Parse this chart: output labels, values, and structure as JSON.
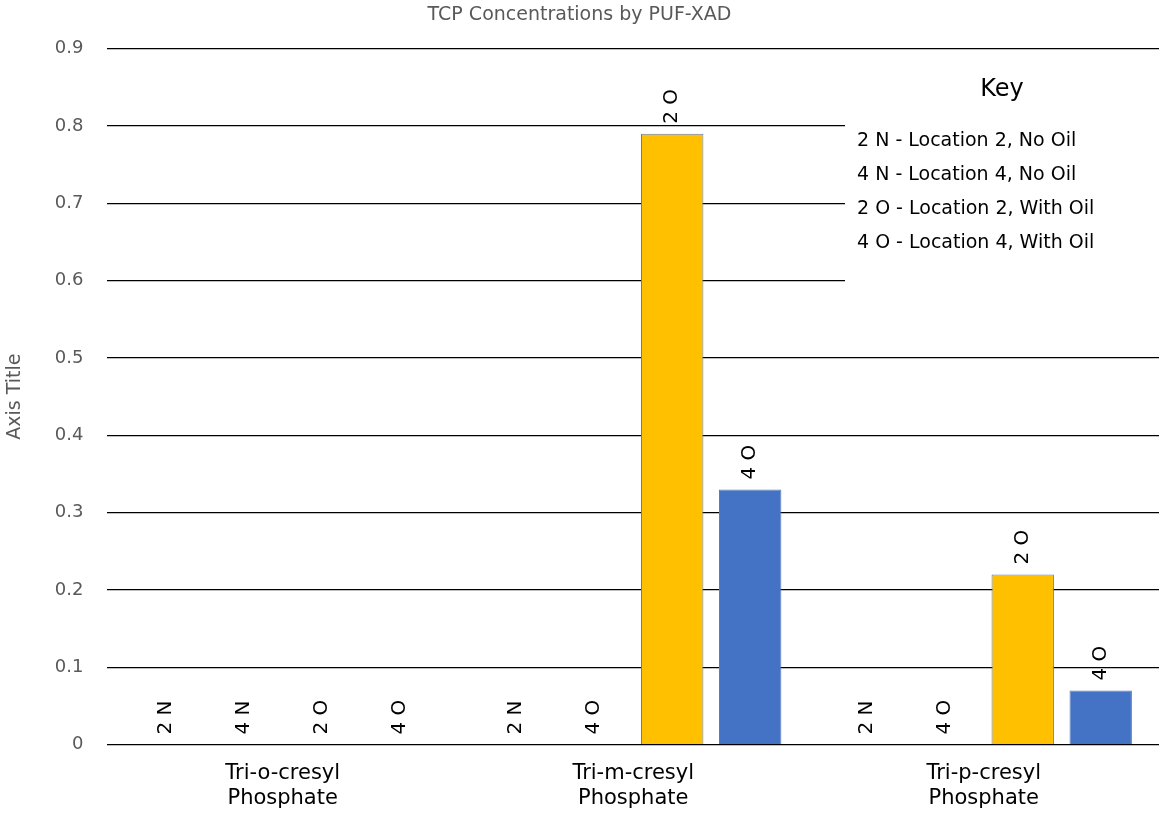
{
  "chart_data": {
    "type": "bar",
    "title": "TCP Concentrations by PUF-XAD",
    "ylabel": "Axis Title",
    "categories": [
      "Tri-o-cresyl Phosphate",
      "Tri-m-cresyl Phosphate",
      "Tri-p-cresyl Phosphate"
    ],
    "series": [
      {
        "name": "2 N",
        "values": [
          0,
          0,
          0
        ]
      },
      {
        "values": [
          0,
          0,
          0
        ]
      },
      {
        "name": "2 O",
        "color": "#ffc000",
        "values": [
          0,
          0.79,
          0.22
        ]
      },
      {
        "name": "4 O",
        "color": "#4472c4",
        "values": [
          0,
          0.33,
          0.07
        ]
      }
    ],
    "annotations": [
      "Key",
      "2 N - Location 2, No Oil",
      "4 N - Location 4, No Oil",
      "2 O - Location 2, With Oil",
      "4 O - Location 4, With Oil",
      {
        "text": "4 N",
        "x": "Tri-o-cresyl Phosphate",
        "y": 0
      },
      {
        "text": "4 O",
        "x": "Tri-m-cresyl Phosphate",
        "y": 0
      },
      {
        "text": "4 O",
        "x": "Tri-p-cresyl Phosphate",
        "y": 0
      }
    ],
    "ylim": [
      0,
      0.9
    ],
    "yticks": [
      0,
      0.1,
      0.2,
      0.3,
      0.4,
      0.5,
      0.6,
      0.7,
      0.8,
      0.9
    ],
    "grid": "y",
    "legend": false
  }
}
